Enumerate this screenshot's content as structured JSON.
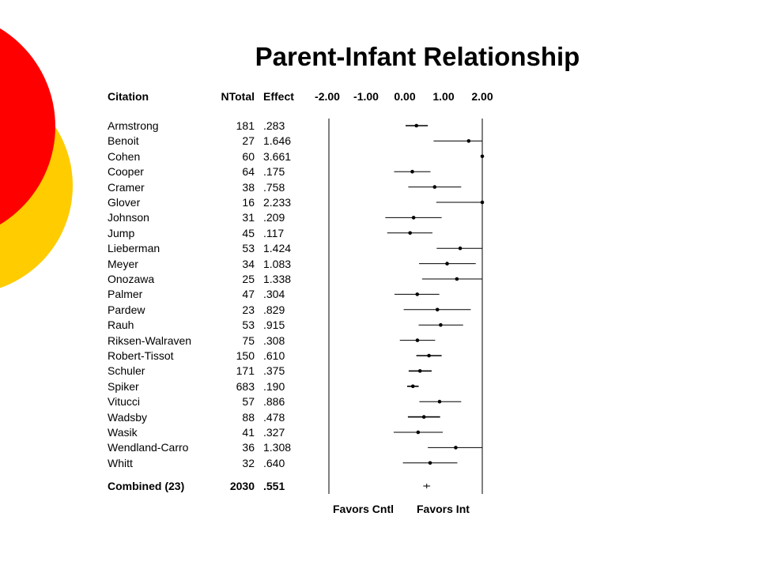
{
  "slide_title": "Parent-Infant Relationship",
  "columns": {
    "citation": "Citation",
    "ntotal": "NTotal",
    "effect": "Effect",
    "ticks": [
      "-2.00",
      "-1.00",
      "0.00",
      "1.00",
      "2.00"
    ]
  },
  "footer": {
    "left": "Favors Cntl",
    "right": "Favors Int"
  },
  "colors": {
    "red_circle": "#ff0000",
    "yellow_circle": "#ffcc00"
  },
  "chart_data": {
    "type": "forest",
    "title": "Parent-Infant Relationship",
    "x_ticks": [
      -2.0,
      -1.0,
      0.0,
      1.0,
      2.0
    ],
    "xlim": [
      -2.0,
      2.0
    ],
    "studies": [
      {
        "citation": "Armstrong",
        "n": "181",
        "effect_label": ".283",
        "effect": 0.283,
        "ci": [
          0.0,
          0.58
        ]
      },
      {
        "citation": "Benoit",
        "n": "27",
        "effect_label": "1.646",
        "effect": 1.646,
        "ci": [
          0.73,
          2.0
        ]
      },
      {
        "citation": "Cohen",
        "n": "60",
        "effect_label": "3.661",
        "effect": 3.661,
        "ci": [
          2.0,
          2.0
        ]
      },
      {
        "citation": "Cooper",
        "n": "64",
        "effect_label": ".175",
        "effect": 0.175,
        "ci": [
          -0.3,
          0.65
        ]
      },
      {
        "citation": "Cramer",
        "n": "38",
        "effect_label": ".758",
        "effect": 0.758,
        "ci": [
          0.07,
          1.45
        ]
      },
      {
        "citation": "Glover",
        "n": "16",
        "effect_label": "2.233",
        "effect": 2.233,
        "ci": [
          0.8,
          2.0
        ]
      },
      {
        "citation": "Johnson",
        "n": "31",
        "effect_label": ".209",
        "effect": 0.209,
        "ci": [
          -0.53,
          0.94
        ]
      },
      {
        "citation": "Jump",
        "n": "45",
        "effect_label": ".117",
        "effect": 0.117,
        "ci": [
          -0.48,
          0.7
        ]
      },
      {
        "citation": "Lieberman",
        "n": "53",
        "effect_label": "1.424",
        "effect": 1.424,
        "ci": [
          0.81,
          2.0
        ]
      },
      {
        "citation": "Meyer",
        "n": "34",
        "effect_label": "1.083",
        "effect": 1.083,
        "ci": [
          0.35,
          1.83
        ]
      },
      {
        "citation": "Onozawa",
        "n": "25",
        "effect_label": "1.338",
        "effect": 1.338,
        "ci": [
          0.43,
          2.0
        ]
      },
      {
        "citation": "Palmer",
        "n": "47",
        "effect_label": ".304",
        "effect": 0.304,
        "ci": [
          -0.29,
          0.88
        ]
      },
      {
        "citation": "Pardew",
        "n": "23",
        "effect_label": ".829",
        "effect": 0.829,
        "ci": [
          -0.05,
          1.7
        ]
      },
      {
        "citation": "Rauh",
        "n": "53",
        "effect_label": ".915",
        "effect": 0.915,
        "ci": [
          0.34,
          1.5
        ]
      },
      {
        "citation": "Riksen-Walraven",
        "n": "75",
        "effect_label": ".308",
        "effect": 0.308,
        "ci": [
          -0.15,
          0.77
        ]
      },
      {
        "citation": "Robert-Tissot",
        "n": "150",
        "effect_label": ".610",
        "effect": 0.61,
        "ci": [
          0.28,
          0.94
        ]
      },
      {
        "citation": "Schuler",
        "n": "171",
        "effect_label": ".375",
        "effect": 0.375,
        "ci": [
          0.08,
          0.68
        ]
      },
      {
        "citation": "Spiker",
        "n": "683",
        "effect_label": ".190",
        "effect": 0.19,
        "ci": [
          0.04,
          0.34
        ]
      },
      {
        "citation": "Vitucci",
        "n": "57",
        "effect_label": ".886",
        "effect": 0.886,
        "ci": [
          0.36,
          1.45
        ]
      },
      {
        "citation": "Wadsby",
        "n": "88",
        "effect_label": ".478",
        "effect": 0.478,
        "ci": [
          0.06,
          0.9
        ]
      },
      {
        "citation": "Wasik",
        "n": "41",
        "effect_label": ".327",
        "effect": 0.327,
        "ci": [
          -0.31,
          0.97
        ]
      },
      {
        "citation": "Wendland-Carro",
        "n": "36",
        "effect_label": "1.308",
        "effect": 1.308,
        "ci": [
          0.58,
          2.0
        ]
      },
      {
        "citation": "Whitt",
        "n": "32",
        "effect_label": ".640",
        "effect": 0.64,
        "ci": [
          -0.07,
          1.35
        ]
      }
    ],
    "combined": {
      "citation": "Combined (23)",
      "n": "2030",
      "effect_label": ".551",
      "effect": 0.551,
      "ci": [
        0.46,
        0.64
      ]
    }
  }
}
